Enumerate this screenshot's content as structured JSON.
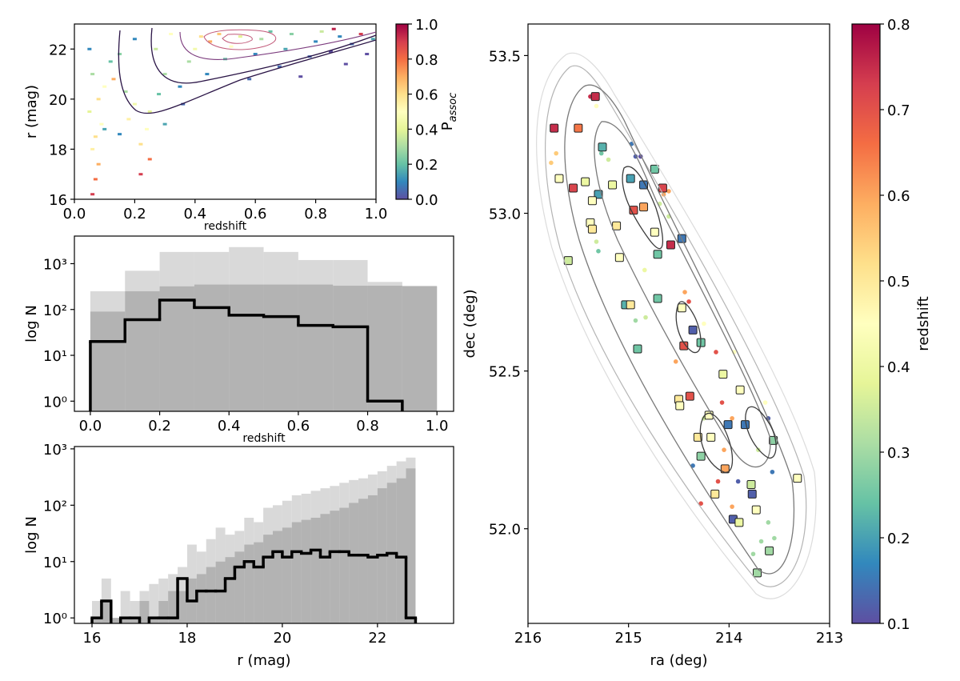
{
  "chart_data": [
    {
      "type": "hist2d",
      "xlabel": "redshift",
      "ylabel": "r (mag)",
      "xlim": [
        0,
        1
      ],
      "ylim": [
        16,
        23
      ],
      "xticks": [
        {
          "value": 0,
          "label": "0.0"
        },
        0.2,
        0.4,
        0.6,
        0.8,
        {
          "value": 1,
          "label": "1.0"
        }
      ],
      "yticks": [
        16,
        18,
        20,
        22
      ],
      "colormap": "Spectral_r",
      "colorbar": {
        "label": "P",
        "label_subscript": "assoc",
        "lim": [
          0,
          1
        ],
        "ticks": [
          {
            "value": 0,
            "label": "0.0"
          },
          0.2,
          0.4,
          0.6,
          0.8,
          {
            "value": 1,
            "label": "1.0"
          }
        ]
      },
      "x": [
        0.06,
        0.07,
        0.08,
        0.06,
        0.07,
        0.09,
        0.05,
        0.08,
        0.1,
        0.06,
        0.12,
        0.05,
        0.15,
        0.18,
        0.2,
        0.22,
        0.22,
        0.24,
        0.25,
        0.28,
        0.3,
        0.3,
        0.15,
        0.2,
        0.35,
        0.38,
        0.4,
        0.42,
        0.45,
        0.48,
        0.5,
        0.52,
        0.55,
        0.58,
        0.6,
        0.62,
        0.65,
        0.68,
        0.7,
        0.72,
        0.75,
        0.78,
        0.8,
        0.82,
        0.85,
        0.88,
        0.9,
        0.92,
        0.95,
        0.97,
        0.99,
        0.32,
        0.27,
        0.13,
        0.17,
        0.44,
        0.36,
        0.25,
        0.1,
        0.86
      ],
      "y": [
        16.2,
        16.8,
        17.4,
        18.0,
        18.5,
        19.0,
        19.5,
        20.0,
        20.5,
        21.0,
        21.5,
        22.0,
        18.6,
        19.2,
        19.8,
        17.0,
        18.2,
        18.8,
        19.5,
        20.2,
        19.0,
        21.0,
        21.8,
        22.4,
        20.5,
        21.5,
        22.0,
        22.5,
        22.3,
        22.6,
        21.6,
        22.1,
        22.5,
        20.8,
        21.8,
        22.4,
        22.7,
        21.3,
        22.0,
        22.6,
        20.9,
        21.7,
        22.3,
        22.7,
        21.9,
        22.5,
        21.4,
        22.2,
        22.6,
        21.8,
        22.4,
        22.6,
        22.0,
        20.8,
        20.3,
        21.0,
        19.8,
        17.6,
        18.8,
        22.8
      ],
      "values": [
        0.9,
        0.8,
        0.7,
        0.55,
        0.6,
        0.5,
        0.4,
        0.6,
        0.5,
        0.3,
        0.2,
        0.1,
        0.1,
        0.55,
        0.45,
        0.9,
        0.6,
        0.5,
        0.4,
        0.2,
        0.15,
        0.3,
        0.25,
        0.1,
        0.1,
        0.3,
        0.45,
        0.6,
        0.7,
        0.65,
        0.2,
        0.5,
        0.4,
        0.05,
        0.1,
        0.3,
        0.2,
        0.05,
        0.15,
        0.25,
        0.0,
        0.05,
        0.1,
        0.35,
        0.0,
        0.1,
        0.0,
        0.05,
        0.9,
        0.0,
        0.15,
        0.5,
        0.35,
        0.7,
        0.3,
        0.1,
        0.05,
        0.8,
        0.15,
        0.95
      ]
    },
    {
      "type": "histogram",
      "xlabel": "redshift",
      "ylabel": "log N",
      "xlim": [
        -0.046,
        1.048
      ],
      "ylim": [
        0.6,
        4000
      ],
      "yscale": "log",
      "xticks": [
        {
          "value": 0,
          "label": "0.0"
        },
        0.2,
        0.4,
        0.6,
        0.8,
        {
          "value": 1,
          "label": "1.0"
        }
      ],
      "yticks": [
        {
          "value": 1,
          "label": "10⁰"
        },
        {
          "value": 10,
          "label": "10¹"
        },
        {
          "value": 100,
          "label": "10²"
        },
        {
          "value": 1000,
          "label": "10³"
        }
      ],
      "bins": [
        0,
        0.1,
        0.2,
        0.3,
        0.4,
        0.5,
        0.6,
        0.7,
        0.8,
        0.9,
        1.0
      ],
      "series": [
        {
          "histtype": "stepfilled",
          "color": "#d9d9d9",
          "values": [
            250,
            700,
            1800,
            1800,
            2300,
            1800,
            1200,
            1200,
            400,
            330
          ]
        },
        {
          "histtype": "stepfilled",
          "color": "#b3b3b3",
          "values": [
            90,
            250,
            320,
            350,
            350,
            350,
            350,
            330,
            330,
            320
          ]
        },
        {
          "histtype": "step",
          "color": "#000000",
          "values": [
            20,
            60,
            160,
            110,
            75,
            70,
            45,
            42,
            1,
            null
          ]
        }
      ]
    },
    {
      "type": "histogram",
      "xlabel": "r (mag)",
      "ylabel": "log N",
      "xlim": [
        15.63,
        23.6
      ],
      "ylim": [
        0.8,
        1100
      ],
      "yscale": "log",
      "xticks": [
        16,
        18,
        20,
        22
      ],
      "yticks": [
        {
          "value": 1,
          "label": "10⁰"
        },
        {
          "value": 10,
          "label": "10¹"
        },
        {
          "value": 100,
          "label": "10²"
        },
        {
          "value": 1000,
          "label": "10³"
        }
      ],
      "bins": [
        16.0,
        16.2,
        16.4,
        16.6,
        16.8,
        17.0,
        17.2,
        17.4,
        17.6,
        17.8,
        18.0,
        18.2,
        18.4,
        18.6,
        18.8,
        19.0,
        19.2,
        19.4,
        19.6,
        19.8,
        20.0,
        20.2,
        20.4,
        20.6,
        20.8,
        21.0,
        21.2,
        21.4,
        21.6,
        21.8,
        22.0,
        22.2,
        22.4,
        22.6,
        22.8
      ],
      "series": [
        {
          "histtype": "stepfilled",
          "color": "#d9d9d9",
          "values": [
            2,
            5,
            1,
            3,
            2,
            3,
            4,
            5,
            6,
            8,
            20,
            15,
            25,
            40,
            30,
            35,
            60,
            50,
            90,
            100,
            120,
            150,
            160,
            180,
            200,
            220,
            250,
            280,
            300,
            350,
            400,
            500,
            600,
            700
          ]
        },
        {
          "histtype": "stepfilled",
          "color": "#b3b3b3",
          "values": [
            1,
            2,
            1,
            1,
            1,
            2,
            1,
            2,
            3,
            3,
            5,
            6,
            8,
            10,
            12,
            15,
            20,
            22,
            30,
            35,
            40,
            50,
            55,
            60,
            70,
            80,
            90,
            110,
            130,
            150,
            200,
            250,
            300,
            450
          ]
        },
        {
          "histtype": "step",
          "color": "#000000",
          "values": [
            1,
            2,
            null,
            1,
            1,
            null,
            1,
            1,
            1,
            5,
            2,
            3,
            3,
            3,
            5,
            8,
            10,
            8,
            12,
            15,
            12,
            15,
            14,
            16,
            12,
            15,
            15,
            13,
            13,
            12,
            13,
            14,
            12,
            1
          ]
        }
      ]
    },
    {
      "type": "scatter",
      "xlabel": "ra (deg)",
      "ylabel": "dec (deg)",
      "xlim": [
        216,
        213
      ],
      "ylim": [
        51.7,
        53.6
      ],
      "xticks": [
        216,
        215,
        214,
        213
      ],
      "yticks": [
        53.5,
        {
          "value": 53,
          "label": "53.0"
        },
        52.5,
        {
          "value": 52,
          "label": "52.0"
        }
      ],
      "colormap": "Spectral_r",
      "colorbar": {
        "label": "redshift",
        "lim": [
          0.1,
          0.8
        ],
        "ticks": [
          0.1,
          0.2,
          0.3,
          0.4,
          0.5,
          0.6,
          0.7,
          0.8
        ]
      },
      "series": [
        {
          "marker": "circle",
          "x": [
            215.77,
            215.72,
            215.38,
            215.32,
            215.27,
            215.2,
            214.97,
            214.93,
            214.88,
            214.65,
            214.6,
            214.69,
            214.6,
            215.32,
            215.3,
            214.84,
            214.93,
            214.83,
            214.44,
            214.4,
            214.53,
            214.25,
            214.13,
            213.95,
            213.64,
            214.07,
            214.25,
            213.97,
            213.61,
            213.71,
            213.57,
            213.91,
            214.11,
            213.61,
            213.68,
            213.55,
            213.76,
            214.05,
            214.28,
            213.97,
            214.36
          ],
          "y": [
            53.16,
            53.19,
            53.37,
            53.34,
            53.19,
            53.17,
            53.22,
            53.18,
            53.18,
            53.06,
            53.07,
            53.03,
            52.99,
            52.91,
            52.88,
            52.82,
            52.66,
            52.67,
            52.75,
            52.72,
            52.53,
            52.65,
            52.56,
            52.56,
            52.4,
            52.4,
            52.35,
            52.35,
            52.35,
            52.25,
            52.18,
            52.15,
            52.15,
            52.02,
            51.96,
            51.97,
            51.92,
            52.25,
            52.08,
            52.07,
            52.2
          ],
          "values": [
            0.55,
            0.55,
            0.75,
            0.45,
            0.25,
            0.35,
            0.15,
            0.12,
            0.1,
            0.6,
            0.6,
            0.35,
            0.35,
            0.35,
            0.25,
            0.4,
            0.3,
            0.35,
            0.6,
            0.7,
            0.6,
            0.45,
            0.7,
            0.45,
            0.45,
            0.7,
            0.35,
            0.6,
            0.12,
            0.35,
            0.15,
            0.12,
            0.7,
            0.3,
            0.3,
            0.3,
            0.3,
            0.6,
            0.7,
            0.6,
            0.15
          ]
        },
        {
          "marker": "square",
          "x": [
            215.74,
            215.33,
            215.5,
            215.55,
            215.26,
            215.69,
            215.43,
            215.3,
            215.16,
            214.98,
            214.74,
            214.85,
            214.66,
            215.36,
            214.95,
            214.85,
            215.38,
            215.36,
            215.12,
            214.74,
            214.58,
            214.47,
            215.6,
            215.09,
            214.71,
            215.03,
            214.98,
            214.71,
            214.91,
            214.47,
            214.36,
            214.45,
            214.28,
            214.06,
            214.39,
            214.5,
            214.49,
            213.89,
            214.2,
            214.31,
            214.18,
            214.28,
            214.04,
            214.14,
            214.01,
            213.84,
            213.56,
            213.78,
            213.77,
            213.96,
            213.9,
            213.73,
            213.6,
            213.32,
            213.72
          ],
          "y": [
            53.27,
            53.37,
            53.27,
            53.08,
            53.21,
            53.11,
            53.1,
            53.06,
            53.09,
            53.11,
            53.14,
            53.09,
            53.08,
            53.04,
            53.01,
            53.02,
            52.97,
            52.95,
            52.96,
            52.94,
            52.9,
            52.92,
            52.85,
            52.86,
            52.87,
            52.71,
            52.71,
            52.73,
            52.57,
            52.7,
            52.63,
            52.58,
            52.59,
            52.49,
            52.42,
            52.41,
            52.39,
            52.44,
            52.36,
            52.29,
            52.29,
            52.23,
            52.19,
            52.11,
            52.33,
            52.33,
            52.28,
            52.14,
            52.11,
            52.03,
            52.02,
            52.06,
            51.93,
            52.16,
            51.86
          ],
          "values": [
            0.75,
            0.75,
            0.65,
            0.72,
            0.22,
            0.45,
            0.4,
            0.2,
            0.4,
            0.2,
            0.25,
            0.15,
            0.72,
            0.45,
            0.7,
            0.6,
            0.45,
            0.5,
            0.5,
            0.45,
            0.75,
            0.15,
            0.35,
            0.45,
            0.25,
            0.22,
            0.5,
            0.25,
            0.25,
            0.45,
            0.12,
            0.7,
            0.25,
            0.4,
            0.7,
            0.5,
            0.45,
            0.45,
            0.45,
            0.5,
            0.45,
            0.28,
            0.6,
            0.5,
            0.15,
            0.15,
            0.28,
            0.35,
            0.12,
            0.12,
            0.4,
            0.45,
            0.3,
            0.45,
            0.3
          ]
        }
      ]
    }
  ]
}
